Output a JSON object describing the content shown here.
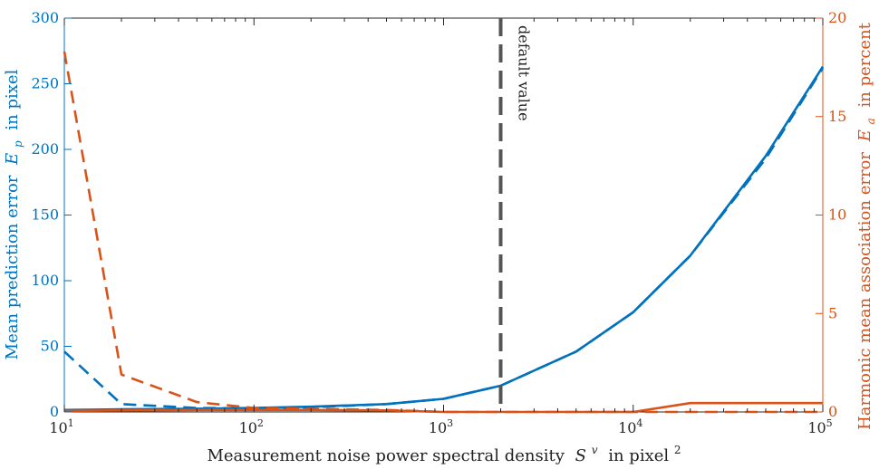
{
  "chart_data": {
    "type": "line",
    "xlabel": "Measurement noise power spectral density",
    "xlabel_symbol": "S",
    "xlabel_superscript": "v",
    "xlabel_unit": "in pixel",
    "xlabel_unit_exponent": "2",
    "ylabel_left": "Mean prediction error",
    "ylabel_left_symbol": "E",
    "ylabel_left_subscript": "p",
    "ylabel_left_unit": "in pixel",
    "ylabel_right": "Harmonic mean association error",
    "ylabel_right_symbol": "E",
    "ylabel_right_subscript": "a",
    "ylabel_right_unit": "in percent",
    "x_scale": "log",
    "xlim": [
      10,
      100000
    ],
    "ylim_left": [
      0,
      300
    ],
    "ylim_right": [
      0,
      20
    ],
    "x_ticks": [
      {
        "base": "10",
        "exp": "1"
      },
      {
        "base": "10",
        "exp": "2"
      },
      {
        "base": "10",
        "exp": "3"
      },
      {
        "base": "10",
        "exp": "4"
      },
      {
        "base": "10",
        "exp": "5"
      }
    ],
    "y_ticks_left": [
      "0",
      "50",
      "100",
      "150",
      "200",
      "250",
      "300"
    ],
    "y_ticks_right": [
      "0",
      "5",
      "10",
      "15",
      "20"
    ],
    "annotation": {
      "label": "default value",
      "x": 2000
    },
    "colors": {
      "left": "#0072BD",
      "right": "#D95319",
      "annotation": "#555555"
    },
    "series": [
      {
        "axis": "left",
        "style": "solid",
        "x": [
          10,
          20,
          50,
          100,
          200,
          500,
          1000,
          2000,
          5000,
          10000,
          20000,
          50000,
          100000
        ],
        "y": [
          1.5,
          2,
          2.5,
          3,
          4,
          6,
          10,
          20,
          46,
          76,
          119,
          195,
          263
        ]
      },
      {
        "axis": "left",
        "style": "dashed",
        "x": [
          10,
          20,
          50,
          100,
          200,
          500,
          1000,
          2000,
          5000,
          10000,
          20000,
          50000,
          100000
        ],
        "y": [
          46,
          6,
          3,
          2.8,
          3.5,
          6,
          10,
          20,
          46,
          76,
          119,
          193,
          262
        ]
      },
      {
        "axis": "right",
        "style": "solid",
        "x": [
          10,
          20,
          50,
          100,
          200,
          500,
          1000,
          2000,
          5000,
          10000,
          20000,
          50000,
          100000
        ],
        "y": [
          0.05,
          0.08,
          0.1,
          0.1,
          0.1,
          0.08,
          0,
          0,
          0,
          0,
          0.45,
          0.45,
          0.45
        ]
      },
      {
        "axis": "right",
        "style": "dashed",
        "x": [
          10,
          20,
          50,
          100,
          200,
          500,
          1000,
          2000,
          5000,
          10000,
          20000,
          50000,
          100000
        ],
        "y": [
          18.3,
          1.9,
          0.5,
          0.2,
          0.15,
          0.1,
          0,
          0,
          0,
          0,
          0,
          0,
          0
        ]
      }
    ]
  }
}
